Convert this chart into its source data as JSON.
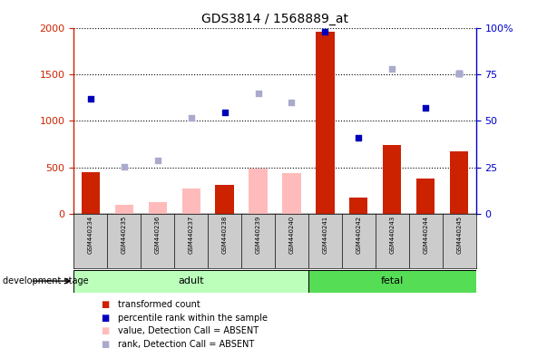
{
  "title": "GDS3814 / 1568889_at",
  "samples": [
    "GSM440234",
    "GSM440235",
    "GSM440236",
    "GSM440237",
    "GSM440238",
    "GSM440239",
    "GSM440240",
    "GSM440241",
    "GSM440242",
    "GSM440243",
    "GSM440244",
    "GSM440245"
  ],
  "bar_red": [
    450,
    null,
    null,
    null,
    310,
    null,
    null,
    1960,
    175,
    740,
    385,
    670
  ],
  "bar_pink": [
    null,
    100,
    130,
    270,
    null,
    490,
    440,
    null,
    null,
    null,
    null,
    null
  ],
  "dot_blue_left": [
    1240,
    null,
    null,
    null,
    1090,
    null,
    null,
    1960,
    820,
    null,
    1140,
    1510
  ],
  "dot_lavender_left": [
    null,
    510,
    580,
    1030,
    null,
    1300,
    1200,
    null,
    null,
    1560,
    null,
    1510
  ],
  "n_adult": 7,
  "n_fetal": 5,
  "ylim_left": [
    0,
    2000
  ],
  "ylim_right": [
    0,
    100
  ],
  "yticks_left": [
    0,
    500,
    1000,
    1500,
    2000
  ],
  "yticks_right": [
    0,
    25,
    50,
    75,
    100
  ],
  "left_axis_color": "#cc2200",
  "right_axis_color": "#0000cc",
  "bar_red_color": "#cc2200",
  "bar_pink_color": "#ffbbbb",
  "dot_blue_color": "#0000bb",
  "dot_lavender_color": "#aaaacc",
  "adult_bg": "#bbffbb",
  "fetal_bg": "#55dd55",
  "sample_bg": "#cccccc",
  "legend_items": [
    {
      "label": "transformed count",
      "color": "#cc2200"
    },
    {
      "label": "percentile rank within the sample",
      "color": "#0000bb"
    },
    {
      "label": "value, Detection Call = ABSENT",
      "color": "#ffbbbb"
    },
    {
      "label": "rank, Detection Call = ABSENT",
      "color": "#aaaacc"
    }
  ]
}
